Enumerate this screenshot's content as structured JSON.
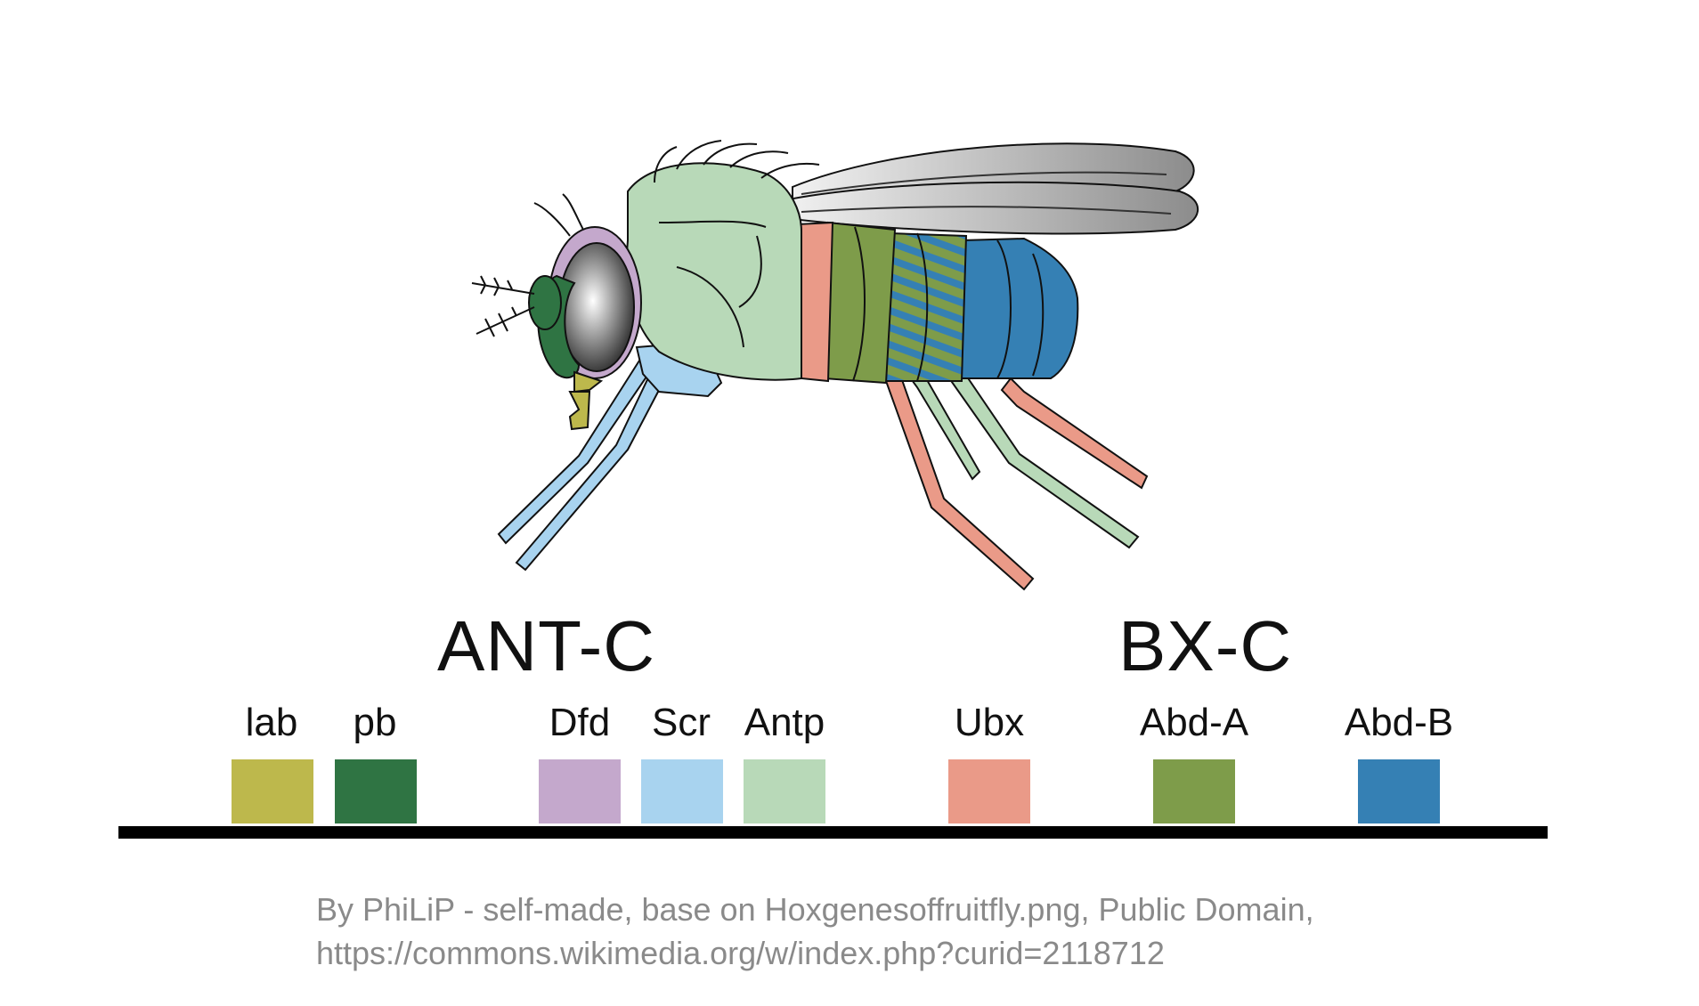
{
  "clusters": {
    "ant_c": "ANT-C",
    "bx_c": "BX-C"
  },
  "genes": [
    {
      "name": "lab",
      "color": "#bdb84c"
    },
    {
      "name": "pb",
      "color": "#2f7443"
    },
    {
      "name": "Dfd",
      "color": "#c4a8cc"
    },
    {
      "name": "Scr",
      "color": "#a8d3ef"
    },
    {
      "name": "Antp",
      "color": "#b8d9b8"
    },
    {
      "name": "Ubx",
      "color": "#ea9a88"
    },
    {
      "name": "Abd-A",
      "color": "#7e9c4a"
    },
    {
      "name": "Abd-B",
      "color": "#3580b4"
    }
  ],
  "credit": {
    "line1": "By PhiLiP - self-made, base on Hoxgenesoffruitfly.png, Public Domain,",
    "line2": "https://commons.wikimedia.org/w/index.php?curid=2118712"
  }
}
